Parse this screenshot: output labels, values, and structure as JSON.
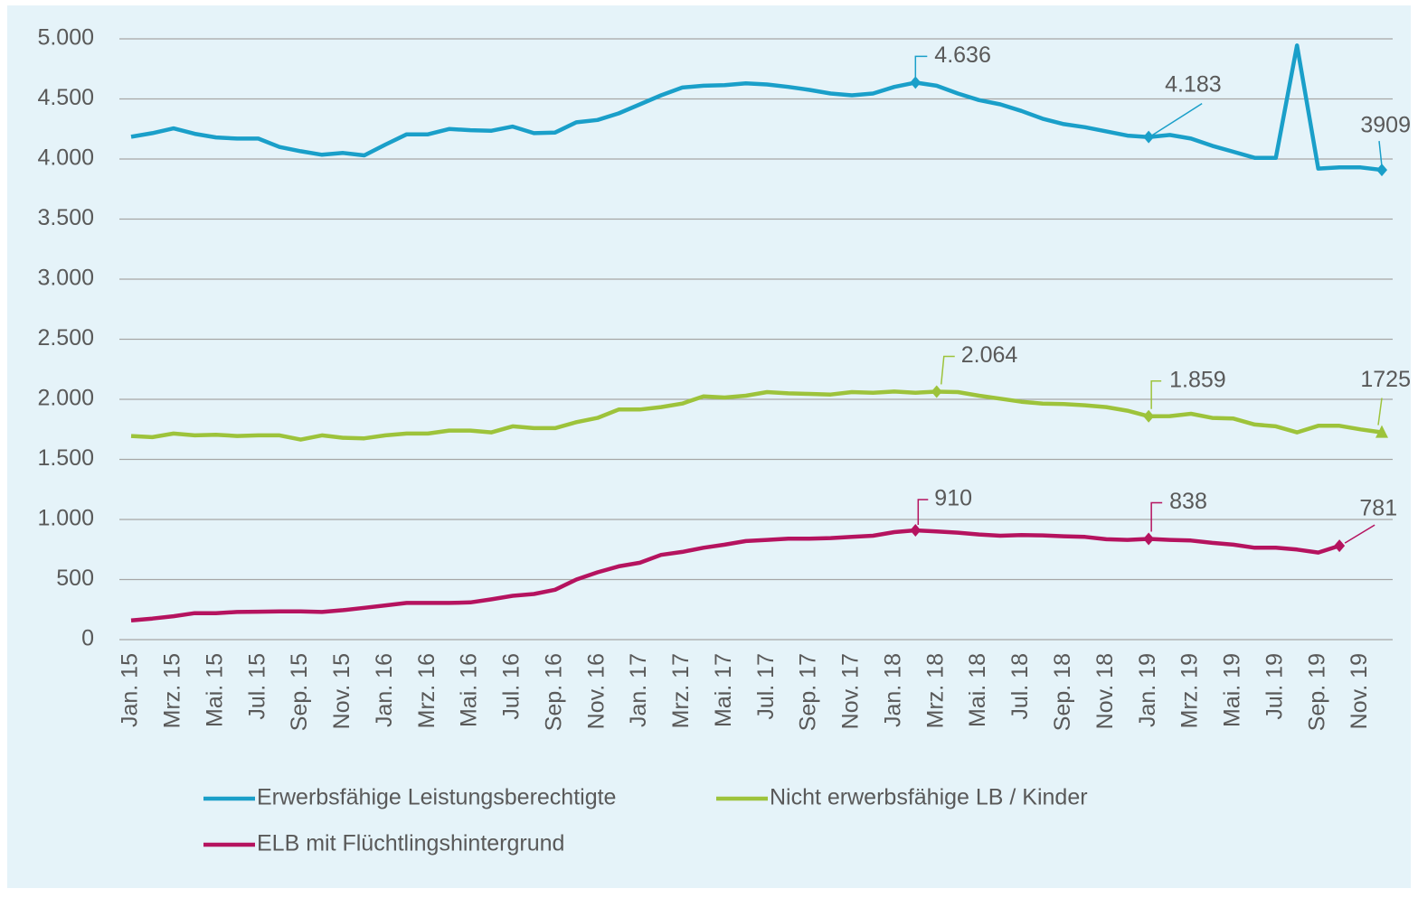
{
  "chart_data": {
    "type": "line",
    "categories": [
      "Jan. 15",
      null,
      "Mrz. 15",
      null,
      "Mai. 15",
      null,
      "Jul. 15",
      null,
      "Sep. 15",
      null,
      "Nov. 15",
      null,
      "Jan. 16",
      null,
      "Mrz. 16",
      null,
      "Mai. 16",
      null,
      "Jul. 16",
      null,
      "Sep. 16",
      null,
      "Nov. 16",
      null,
      "Jan. 17",
      null,
      "Mrz. 17",
      null,
      "Mai. 17",
      null,
      "Jul. 17",
      null,
      "Sep. 17",
      null,
      "Nov. 17",
      null,
      "Jan. 18",
      null,
      "Mrz. 18",
      null,
      "Mai. 18",
      null,
      "Jul. 18",
      null,
      "Sep. 18",
      null,
      "Nov. 18",
      null,
      "Jan. 19",
      null,
      "Mrz. 19",
      null,
      "Mai. 19",
      null,
      "Jul. 19",
      null,
      "Sep. 19",
      null,
      "Nov. 19",
      null
    ],
    "series": [
      {
        "name": "Erwerbsfähige Leistungsberechtigte",
        "color": "#1a9fc9",
        "values": [
          4185,
          4215,
          4255,
          4210,
          4180,
          4170,
          4170,
          4100,
          4065,
          4035,
          4050,
          4030,
          4120,
          4205,
          4205,
          4250,
          4240,
          4235,
          4270,
          4215,
          4220,
          4305,
          4325,
          4380,
          4455,
          4530,
          4595,
          4610,
          4615,
          4630,
          4620,
          4600,
          4575,
          4545,
          4530,
          4545,
          4600,
          4636,
          4610,
          4545,
          4490,
          4455,
          4400,
          4335,
          4290,
          4265,
          4230,
          4195,
          4183,
          4200,
          4170,
          4110,
          4060,
          4010,
          4010,
          4945,
          3920,
          3930,
          3930,
          3909
        ],
        "value_labels": [
          null,
          null,
          null,
          null,
          null,
          null,
          null,
          null,
          null,
          null,
          null,
          null,
          null,
          null,
          null,
          null,
          null,
          null,
          null,
          null,
          null,
          null,
          null,
          null,
          null,
          null,
          null,
          null,
          null,
          null,
          null,
          null,
          null,
          null,
          null,
          null,
          null,
          "4.636",
          null,
          null,
          null,
          null,
          null,
          null,
          null,
          null,
          null,
          null,
          "4.183",
          null,
          null,
          null,
          null,
          null,
          null,
          null,
          null,
          null,
          null,
          "3909"
        ]
      },
      {
        "name": "Nicht erwerbsfähige LB / Kinder",
        "color": "#9dc33b",
        "values": [
          1695,
          1685,
          1715,
          1700,
          1705,
          1695,
          1700,
          1700,
          1665,
          1700,
          1680,
          1675,
          1700,
          1715,
          1715,
          1740,
          1740,
          1725,
          1775,
          1760,
          1760,
          1810,
          1845,
          1915,
          1915,
          1935,
          1965,
          2025,
          2015,
          2030,
          2060,
          2050,
          2045,
          2040,
          2060,
          2055,
          2065,
          2055,
          2064,
          2060,
          2030,
          2005,
          1980,
          1965,
          1960,
          1950,
          1935,
          1905,
          1859,
          1860,
          1880,
          1845,
          1840,
          1790,
          1775,
          1725,
          1780,
          1780,
          1750,
          1725
        ],
        "value_labels": [
          null,
          null,
          null,
          null,
          null,
          null,
          null,
          null,
          null,
          null,
          null,
          null,
          null,
          null,
          null,
          null,
          null,
          null,
          null,
          null,
          null,
          null,
          null,
          null,
          null,
          null,
          null,
          null,
          null,
          null,
          null,
          null,
          null,
          null,
          null,
          null,
          null,
          null,
          "2.064",
          null,
          null,
          null,
          null,
          null,
          null,
          null,
          null,
          null,
          "1.859",
          null,
          null,
          null,
          null,
          null,
          null,
          null,
          null,
          null,
          null,
          "1725"
        ]
      },
      {
        "name": "ELB mit Flüchtlingshintergrund",
        "color": "#b5135f",
        "values": [
          160,
          175,
          195,
          220,
          220,
          230,
          232,
          235,
          235,
          230,
          245,
          265,
          285,
          305,
          305,
          305,
          310,
          335,
          365,
          380,
          415,
          500,
          560,
          610,
          640,
          705,
          730,
          765,
          790,
          820,
          830,
          840,
          840,
          845,
          855,
          865,
          895,
          910,
          900,
          890,
          875,
          865,
          870,
          868,
          860,
          855,
          835,
          830,
          838,
          830,
          825,
          805,
          790,
          765,
          765,
          750,
          725,
          781,
          null,
          null
        ],
        "value_labels": [
          null,
          null,
          null,
          null,
          null,
          null,
          null,
          null,
          null,
          null,
          null,
          null,
          null,
          null,
          null,
          null,
          null,
          null,
          null,
          null,
          null,
          null,
          null,
          null,
          null,
          null,
          null,
          null,
          null,
          null,
          null,
          null,
          null,
          null,
          null,
          null,
          null,
          "910",
          null,
          null,
          null,
          null,
          null,
          null,
          null,
          null,
          null,
          null,
          "838",
          null,
          null,
          null,
          null,
          null,
          null,
          null,
          null,
          "781",
          null,
          null
        ]
      }
    ],
    "ylim": [
      0,
      5000
    ],
    "yticks": [
      0,
      500,
      {
        "value": 1000,
        "label": "1.000"
      },
      {
        "value": 1500,
        "label": "1.500"
      },
      {
        "value": 2000,
        "label": "2.000"
      },
      {
        "value": 2500,
        "label": "2.500"
      },
      {
        "value": 3000,
        "label": "3.000"
      },
      {
        "value": 3500,
        "label": "3.500"
      },
      {
        "value": 4000,
        "label": "4.000"
      },
      {
        "value": 4500,
        "label": "4.500"
      },
      {
        "value": 5000,
        "label": "5.000"
      }
    ],
    "grid": true
  }
}
